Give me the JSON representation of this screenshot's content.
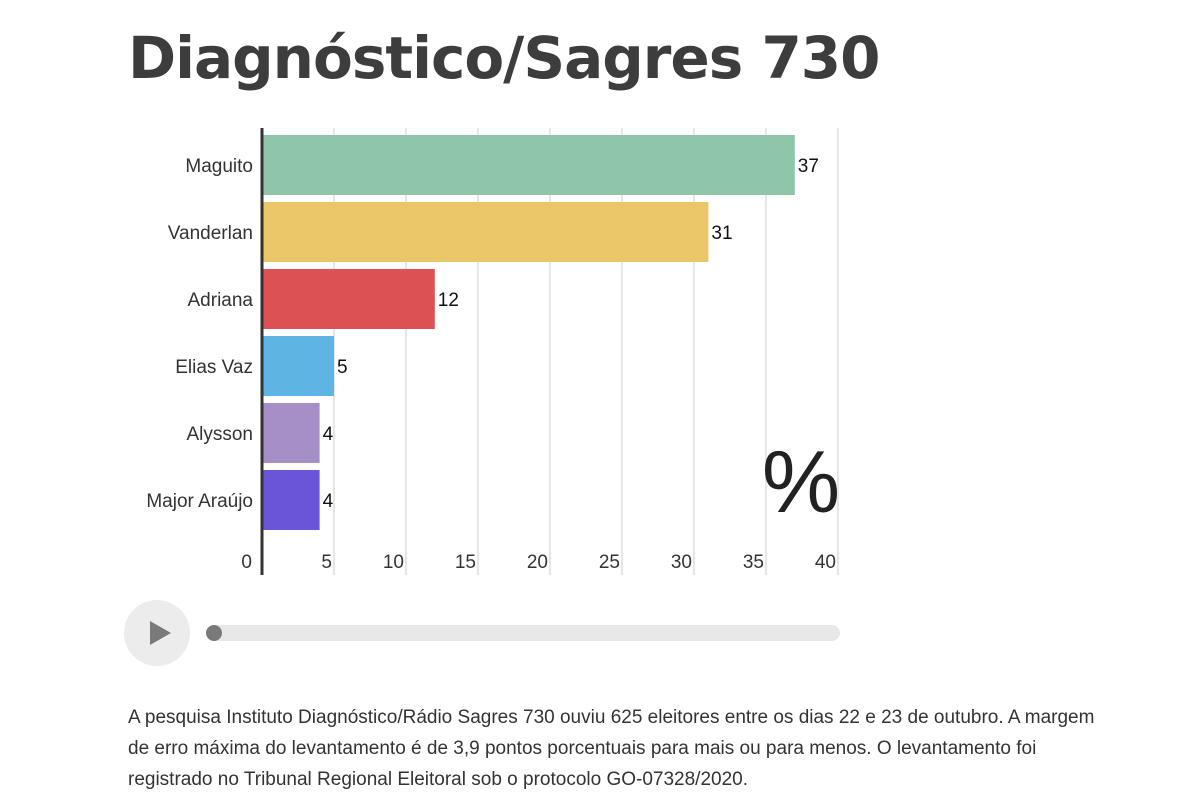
{
  "title": "Diagnóstico/Sagres 730",
  "chart_data": {
    "type": "bar",
    "orientation": "horizontal",
    "categories": [
      "Maguito",
      "Vanderlan",
      "Adriana",
      "Elias Vaz",
      "Alysson",
      "Major Araújo"
    ],
    "values": [
      37,
      31,
      12,
      5,
      4,
      4
    ],
    "colors": [
      "#8fc5a9",
      "#ecc76a",
      "#dc5254",
      "#5eb4e3",
      "#a68fc7",
      "#6a55d9"
    ],
    "data_labels": [
      "37",
      "31",
      "12",
      "5",
      "4",
      "4"
    ],
    "xlim": [
      0,
      40
    ],
    "x_ticks": [
      0,
      5,
      10,
      15,
      20,
      25,
      30,
      35,
      40
    ],
    "unit_label": "%",
    "grid": true
  },
  "player": {
    "progress": 0,
    "play_icon": "play-icon"
  },
  "caption": "A pesquisa Instituto Diagnóstico/Rádio Sagres 730 ouviu 625 eleitores entre os dias 22 e 23 de outubro. A margem de erro máxima do levantamento é de 3,9 pontos porcentuais para mais ou para menos. O levantamento foi registrado no Tribunal Regional Eleitoral sob o protocolo GO-07328/2020."
}
